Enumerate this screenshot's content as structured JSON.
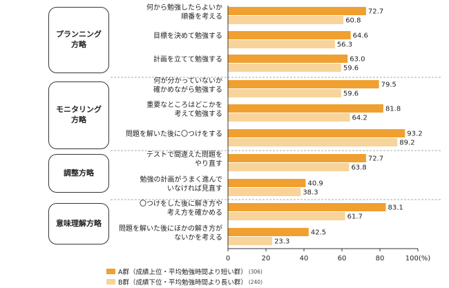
{
  "colors": {
    "a": "#f0a030",
    "b": "#f8d39a",
    "dash": "#aaaaaa",
    "axis": "#333333"
  },
  "categories": [
    {
      "label": "プランニング\n方略"
    },
    {
      "label": "モニタリング\n方略"
    },
    {
      "label": "調整方略"
    },
    {
      "label": "意味理解方略"
    }
  ],
  "axis": {
    "unit": "(%)"
  },
  "legend": {
    "a": {
      "label": "A群（成績上位・平均勉強時間より短い群）",
      "n": "(306)"
    },
    "b": {
      "label": "B群（成績下位・平均勉強時間より長い群）",
      "n": "(240)"
    }
  },
  "chart_data": {
    "type": "bar",
    "orientation": "horizontal",
    "xlim": [
      0,
      100
    ],
    "ticks": [
      0,
      20,
      40,
      60,
      80,
      100
    ],
    "categories": [
      "何から勉強したらよいか\n順番を考える",
      "目標を決めて勉強する",
      "計画を立てて勉強する",
      "何が分かっていないか\n確かめながら勉強する",
      "重要なところはどこかを\n考えて勉強する",
      "問題を解いた後に〇つけをする",
      "テストで間違えた問題を\nやり直す",
      "勉強の計画がうまく進んで\nいなければ見直す",
      "〇つけをした後に解き方や\n考え方を確かめる",
      "問題を解いた後にほかの解き方が\nないかを考える"
    ],
    "series": [
      {
        "name": "A群（成績上位・平均勉強時間より短い群）",
        "values": [
          72.7,
          64.6,
          63.0,
          79.5,
          81.8,
          93.2,
          72.7,
          40.9,
          83.1,
          42.5
        ]
      },
      {
        "name": "B群（成績下位・平均勉強時間より長い群）",
        "values": [
          60.8,
          56.3,
          59.6,
          59.6,
          64.2,
          89.2,
          63.8,
          38.3,
          61.7,
          23.3
        ]
      }
    ],
    "value_labels": [
      [
        "72.7",
        "64.6",
        "63.0",
        "79.5",
        "81.8",
        "93.2",
        "72.7",
        "40.9",
        "83.1",
        "42.5"
      ],
      [
        "60.8",
        "56.3",
        "59.6",
        "59.6",
        "64.2",
        "89.2",
        "63.8",
        "38.3",
        "61.7",
        "23.3"
      ]
    ]
  }
}
